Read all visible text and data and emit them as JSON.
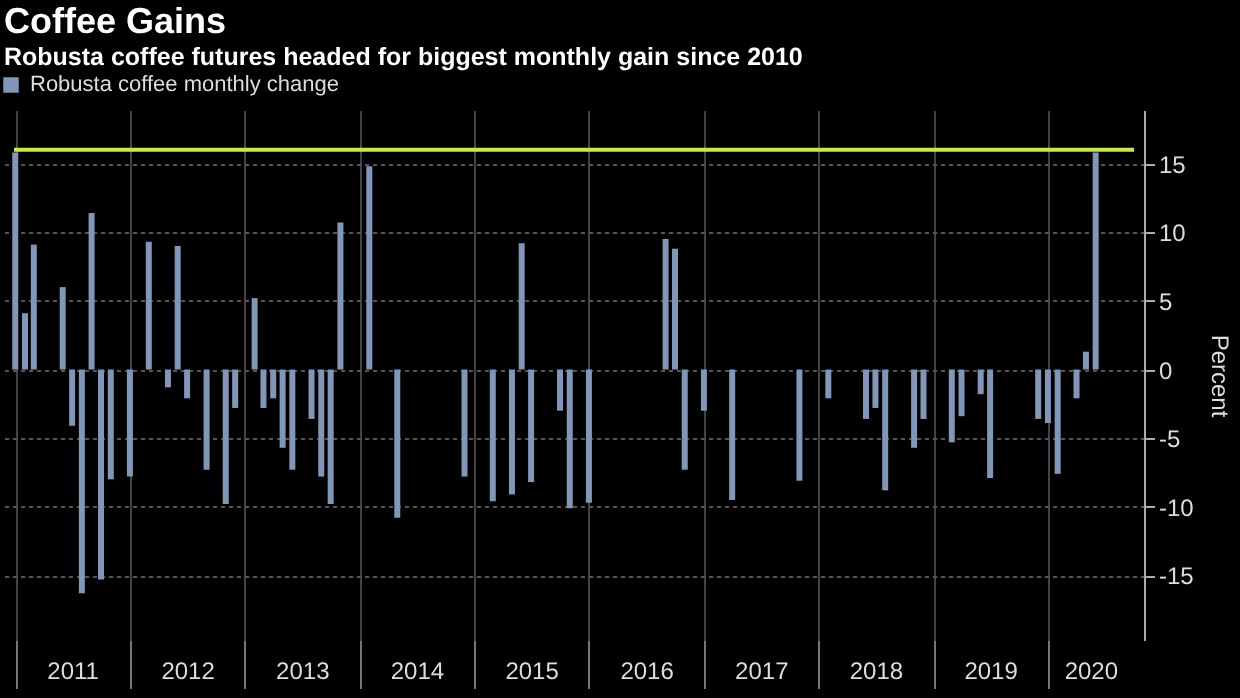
{
  "chart_data": {
    "type": "bar",
    "title": "Coffee Gains",
    "subtitle": "Robusta coffee futures headed for biggest monthly gain since 2010",
    "ylabel": "Percent",
    "x": [
      "2011-01",
      "2011-02",
      "2011-03",
      "2011-04",
      "2011-05",
      "2011-06",
      "2011-07",
      "2011-08",
      "2011-09",
      "2011-10",
      "2011-11",
      "2011-12",
      "2012-01",
      "2012-02",
      "2012-03",
      "2012-04",
      "2012-05",
      "2012-06",
      "2012-07",
      "2012-08",
      "2012-09",
      "2012-10",
      "2012-11",
      "2012-12",
      "2013-01",
      "2013-02",
      "2013-03",
      "2013-04",
      "2013-05",
      "2013-06",
      "2013-07",
      "2013-08",
      "2013-09",
      "2013-10",
      "2013-11",
      "2013-12",
      "2014-01",
      "2014-02",
      "2014-03",
      "2014-04",
      "2014-05",
      "2014-06",
      "2014-07",
      "2014-08",
      "2014-09",
      "2014-10",
      "2014-11",
      "2014-12",
      "2015-01",
      "2015-02",
      "2015-03",
      "2015-04",
      "2015-05",
      "2015-06",
      "2015-07",
      "2015-08",
      "2015-09",
      "2015-10",
      "2015-11",
      "2015-12",
      "2016-01",
      "2016-02",
      "2016-03",
      "2016-04",
      "2016-05",
      "2016-06",
      "2016-07",
      "2016-08",
      "2016-09",
      "2016-10",
      "2016-11",
      "2016-12",
      "2017-01",
      "2017-02",
      "2017-03",
      "2017-04",
      "2017-05",
      "2017-06",
      "2017-07",
      "2017-08",
      "2017-09",
      "2017-10",
      "2017-11",
      "2017-12",
      "2018-01",
      "2018-02",
      "2018-03",
      "2018-04",
      "2018-05",
      "2018-06",
      "2018-07",
      "2018-08",
      "2018-09",
      "2018-10",
      "2018-11",
      "2018-12",
      "2019-01",
      "2019-02",
      "2019-03",
      "2019-04",
      "2019-05",
      "2019-06",
      "2019-07",
      "2019-08",
      "2019-09",
      "2019-10",
      "2019-11",
      "2019-12",
      "2020-01",
      "2020-02",
      "2020-03",
      "2020-04",
      "2020-05",
      "2020-06"
    ],
    "series": [
      {
        "name": "Robusta coffee monthly change",
        "color": "#8196b8",
        "values": [
          15.8,
          4.1,
          9.1,
          null,
          null,
          6,
          -4.1,
          -16.3,
          11.4,
          -15.3,
          -8,
          null,
          -7.8,
          null,
          9.3,
          null,
          -1.3,
          9,
          -2.1,
          null,
          -7.3,
          null,
          -9.8,
          -2.8,
          null,
          5.2,
          -2.8,
          -2.1,
          -5.7,
          -7.3,
          null,
          -3.6,
          -7.8,
          -9.8,
          10.7,
          null,
          null,
          14.8,
          null,
          null,
          -10.8,
          null,
          null,
          null,
          null,
          null,
          null,
          -7.8,
          null,
          null,
          -9.6,
          null,
          -9.1,
          9.2,
          -8.2,
          null,
          null,
          -3,
          -10.1,
          null,
          -9.7,
          null,
          null,
          null,
          null,
          null,
          null,
          null,
          9.5,
          8.8,
          -7.3,
          null,
          -3,
          null,
          null,
          -9.5,
          null,
          null,
          null,
          null,
          null,
          null,
          -8.1,
          null,
          null,
          -2.1,
          null,
          null,
          null,
          -3.6,
          -2.8,
          -8.8,
          null,
          null,
          -5.7,
          -3.6,
          null,
          null,
          -5.3,
          -3.4,
          null,
          -1.8,
          -7.9,
          null,
          null,
          null,
          null,
          -3.6,
          -3.9,
          -7.6,
          null,
          -2.1,
          1.3,
          15.8
        ]
      }
    ],
    "xlim": [
      "2010-12-28",
      "2020-10-01"
    ],
    "xticks": [
      {
        "value": "2011-01-01",
        "label": null
      },
      {
        "value": "2011-07-01",
        "label": "2011"
      },
      {
        "value": "2012-01-01",
        "label": null
      },
      {
        "value": "2012-07-01",
        "label": "2012"
      },
      {
        "value": "2013-01-01",
        "label": null
      },
      {
        "value": "2013-07-01",
        "label": "2013"
      },
      {
        "value": "2014-01-01",
        "label": null
      },
      {
        "value": "2014-07-01",
        "label": "2014"
      },
      {
        "value": "2015-01-01",
        "label": null
      },
      {
        "value": "2015-07-01",
        "label": "2015"
      },
      {
        "value": "2016-01-01",
        "label": null
      },
      {
        "value": "2016-07-01",
        "label": "2016"
      },
      {
        "value": "2017-01-01",
        "label": null
      },
      {
        "value": "2017-07-01",
        "label": "2017"
      },
      {
        "value": "2018-01-01",
        "label": null
      },
      {
        "value": "2018-07-01",
        "label": "2018"
      },
      {
        "value": "2019-01-01",
        "label": null
      },
      {
        "value": "2019-07-01",
        "label": "2019"
      },
      {
        "value": "2020-01-01",
        "label": null
      },
      {
        "value": "2020-05-15",
        "label": "2020"
      }
    ],
    "ylim": [
      -19.7,
      18.9
    ],
    "yticks": [
      -15,
      -10,
      -5,
      0,
      5,
      10,
      15
    ],
    "ref_lines": [
      {
        "axis": "y",
        "value": 16,
        "color": "#c5e84a"
      }
    ],
    "grid": true,
    "legend": "top left"
  }
}
